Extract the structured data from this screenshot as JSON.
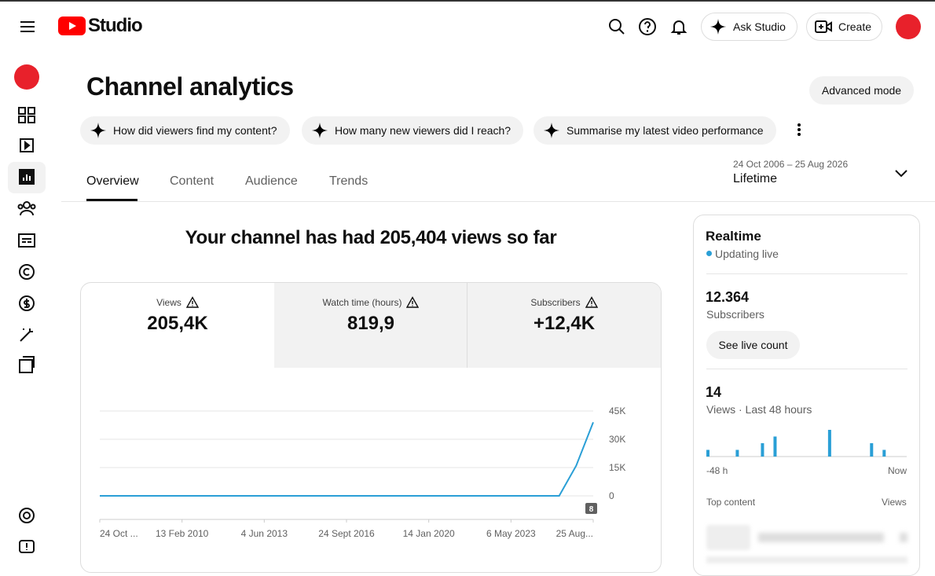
{
  "header": {
    "logo": "Studio",
    "ask": "Ask Studio",
    "create": "Create"
  },
  "page": {
    "title": "Channel analytics",
    "advanced": "Advanced mode",
    "prompts": [
      "How did viewers find my content?",
      "How many new viewers did I reach?",
      "Summarise my latest video performance"
    ],
    "tabs": [
      "Overview",
      "Content",
      "Audience",
      "Trends"
    ],
    "date_range": "24 Oct 2006 – 25 Aug 2026",
    "period": "Lifetime",
    "headline": "Your channel has had 205,404 views so far"
  },
  "metrics": [
    {
      "label": "Views",
      "value": "205,4K"
    },
    {
      "label": "Watch time (hours)",
      "value": "819,9"
    },
    {
      "label": "Subscribers",
      "value": "+12,4K"
    }
  ],
  "realtime": {
    "title": "Realtime",
    "status": "Updating live",
    "subscribers": "12.364",
    "subscribers_label": "Subscribers",
    "button": "See live count",
    "views": "14",
    "views_label": "Views · Last 48 hours",
    "top_content": "Top content",
    "top_views": "Views"
  },
  "chart_data": [
    {
      "type": "line",
      "color": "#2a9fd6",
      "values": [
        0,
        0,
        0,
        0,
        0,
        0,
        0,
        0,
        0,
        0,
        0,
        0,
        0,
        0,
        0,
        0,
        0,
        0,
        0,
        0,
        0,
        0,
        0,
        0,
        0,
        0,
        0,
        0,
        16000,
        39000
      ],
      "ylim": [
        0,
        45000
      ],
      "yticks": [
        0,
        {
          "value": 15000,
          "label": "15K"
        },
        {
          "value": 30000,
          "label": "30K"
        },
        {
          "value": 45000,
          "label": "45K"
        }
      ],
      "xtick_labels": [
        "24 Oct ...",
        "13 Feb 2010",
        "4 Jun 2013",
        "24 Sept 2016",
        "14 Jan 2020",
        "6 May 2023",
        "25 Aug..."
      ],
      "annotation": "8",
      "grid": true
    },
    {
      "type": "bar",
      "color": "#2a9fd6",
      "values": [
        1,
        0,
        0,
        0,
        0,
        0,
        0,
        1,
        0,
        0,
        0,
        0,
        0,
        2,
        0,
        0,
        3,
        0,
        0,
        0,
        0,
        0,
        0,
        0,
        0,
        0,
        0,
        0,
        0,
        4,
        0,
        0,
        0,
        0,
        0,
        0,
        0,
        0,
        0,
        2,
        0,
        0,
        1,
        0,
        0,
        0,
        0,
        0
      ],
      "x_start_label": "-48 h",
      "x_end_label": "Now"
    }
  ]
}
